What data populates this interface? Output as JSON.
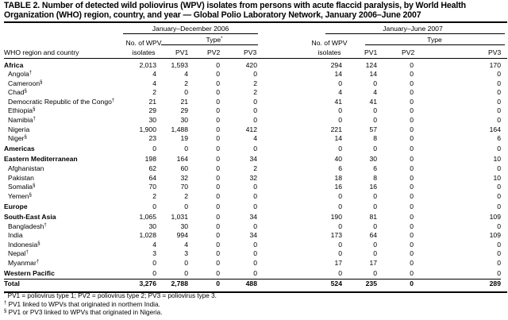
{
  "title": "TABLE 2. Number of detected wild poliovirus (WPV) isolates from persons with acute flaccid paralysis, by World Health Organization (WHO) region, country, and year — Global Polio Laboratory Network, January 2006–June 2007",
  "headers": {
    "period_2006": "January–December 2006",
    "period_2007": "January–June 2007",
    "row_header": "WHO region and country",
    "isolates_line1": "No. of WPV",
    "isolates_line2": "isolates",
    "type_2006": "Type",
    "type_2006_mark": "*",
    "type_2007": "Type",
    "pv1": "PV1",
    "pv2": "PV2",
    "pv3": "PV3"
  },
  "rows": [
    {
      "kind": "region",
      "name": "Africa",
      "mark": "",
      "values": [
        "2,013",
        "1,593",
        "0",
        "420",
        "294",
        "124",
        "0",
        "170"
      ]
    },
    {
      "kind": "country",
      "name": "Angola",
      "mark": "†",
      "values": [
        "4",
        "4",
        "0",
        "0",
        "14",
        "14",
        "0",
        "0"
      ]
    },
    {
      "kind": "country",
      "name": "Cameroon",
      "mark": "§",
      "values": [
        "4",
        "2",
        "0",
        "2",
        "0",
        "0",
        "0",
        "0"
      ]
    },
    {
      "kind": "country",
      "name": "Chad",
      "mark": "§",
      "values": [
        "2",
        "0",
        "0",
        "2",
        "4",
        "4",
        "0",
        "0"
      ]
    },
    {
      "kind": "country",
      "name": "Democratic Republic of the Congo",
      "mark": "†",
      "values": [
        "21",
        "21",
        "0",
        "0",
        "41",
        "41",
        "0",
        "0"
      ]
    },
    {
      "kind": "country",
      "name": "Ethiopia",
      "mark": "§",
      "values": [
        "29",
        "29",
        "0",
        "0",
        "0",
        "0",
        "0",
        "0"
      ]
    },
    {
      "kind": "country",
      "name": "Namibia",
      "mark": "†",
      "values": [
        "30",
        "30",
        "0",
        "0",
        "0",
        "0",
        "0",
        "0"
      ]
    },
    {
      "kind": "country",
      "name": "Nigeria",
      "mark": "",
      "values": [
        "1,900",
        "1,488",
        "0",
        "412",
        "221",
        "57",
        "0",
        "164"
      ]
    },
    {
      "kind": "country",
      "name": "Niger",
      "mark": "§",
      "values": [
        "23",
        "19",
        "0",
        "4",
        "14",
        "8",
        "0",
        "6"
      ]
    },
    {
      "kind": "region",
      "name": "Americas",
      "mark": "",
      "values": [
        "0",
        "0",
        "0",
        "0",
        "0",
        "0",
        "0",
        "0"
      ]
    },
    {
      "kind": "region",
      "name": "Eastern Mediterranean",
      "mark": "",
      "values": [
        "198",
        "164",
        "0",
        "34",
        "40",
        "30",
        "0",
        "10"
      ]
    },
    {
      "kind": "country",
      "name": "Afghanistan",
      "mark": "",
      "values": [
        "62",
        "60",
        "0",
        "2",
        "6",
        "6",
        "0",
        "0"
      ]
    },
    {
      "kind": "country",
      "name": "Pakistan",
      "mark": "",
      "values": [
        "64",
        "32",
        "0",
        "32",
        "18",
        "8",
        "0",
        "10"
      ]
    },
    {
      "kind": "country",
      "name": "Somalia",
      "mark": "§",
      "values": [
        "70",
        "70",
        "0",
        "0",
        "16",
        "16",
        "0",
        "0"
      ]
    },
    {
      "kind": "country",
      "name": "Yemen",
      "mark": "§",
      "values": [
        "2",
        "2",
        "0",
        "0",
        "0",
        "0",
        "0",
        "0"
      ]
    },
    {
      "kind": "region",
      "name": "Europe",
      "mark": "",
      "values": [
        "0",
        "0",
        "0",
        "0",
        "0",
        "0",
        "0",
        "0"
      ]
    },
    {
      "kind": "region",
      "name": "South-East Asia",
      "mark": "",
      "values": [
        "1,065",
        "1,031",
        "0",
        "34",
        "190",
        "81",
        "0",
        "109"
      ]
    },
    {
      "kind": "country",
      "name": "Bangladesh",
      "mark": "†",
      "values": [
        "30",
        "30",
        "0",
        "0",
        "0",
        "0",
        "0",
        "0"
      ]
    },
    {
      "kind": "country",
      "name": "India",
      "mark": "",
      "values": [
        "1,028",
        "994",
        "0",
        "34",
        "173",
        "64",
        "0",
        "109"
      ]
    },
    {
      "kind": "country",
      "name": "Indonesia",
      "mark": "§",
      "values": [
        "4",
        "4",
        "0",
        "0",
        "0",
        "0",
        "0",
        "0"
      ]
    },
    {
      "kind": "country",
      "name": "Nepal",
      "mark": "†",
      "values": [
        "3",
        "3",
        "0",
        "0",
        "0",
        "0",
        "0",
        "0"
      ]
    },
    {
      "kind": "country",
      "name": "Myanmar",
      "mark": "†",
      "values": [
        "0",
        "0",
        "0",
        "0",
        "17",
        "17",
        "0",
        "0"
      ]
    },
    {
      "kind": "region",
      "name": "Western Pacific",
      "mark": "",
      "values": [
        "0",
        "0",
        "0",
        "0",
        "0",
        "0",
        "0",
        "0"
      ]
    },
    {
      "kind": "total",
      "name": "Total",
      "mark": "",
      "values": [
        "3,276",
        "2,788",
        "0",
        "488",
        "524",
        "235",
        "0",
        "289"
      ]
    }
  ],
  "footnotes": [
    {
      "mark": "*",
      "text": "PV1 = poliovirus type 1; PV2 = poliovirus type 2; PV3 = poliovirus type 3."
    },
    {
      "mark": "†",
      "text": "PV1 linked to WPVs that originated in northern India."
    },
    {
      "mark": "§",
      "text": "PV1 or PV3 linked to WPVs that originated in Nigeria."
    }
  ]
}
